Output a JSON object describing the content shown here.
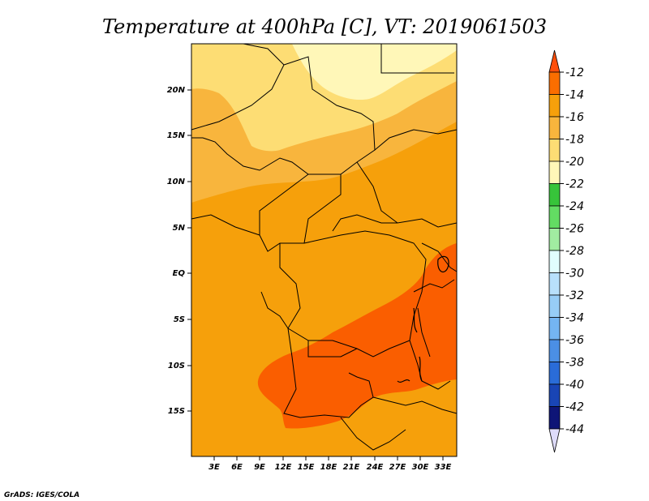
{
  "title": "Temperature at 400hPa [C], VT: 2019061503",
  "footer": "GrADS: IGES/COLA",
  "lat_labels": [
    "20N",
    "15N",
    "10N",
    "5N",
    "EQ",
    "5S",
    "10S",
    "15S"
  ],
  "lon_labels": [
    "3E",
    "6E",
    "9E",
    "12E",
    "15E",
    "18E",
    "21E",
    "24E",
    "27E",
    "30E",
    "33E"
  ],
  "colorbar": {
    "labels": [
      "-12",
      "-14",
      "-16",
      "-18",
      "-20",
      "-22",
      "-24",
      "-26",
      "-28",
      "-30",
      "-32",
      "-34",
      "-36",
      "-38",
      "-40",
      "-42",
      "-44"
    ],
    "colors": [
      "#ff4f0a",
      "#fa6e00",
      "#f6a00b",
      "#f8b53d",
      "#fddd74",
      "#fff7b8",
      "#37c43a",
      "#63dc63",
      "#a1eca1",
      "#e1fdfd",
      "#b8e0fb",
      "#97cdf6",
      "#74b5f2",
      "#4b8fe5",
      "#2a6cd8",
      "#1945b5",
      "#0e1577",
      "#dedbfa"
    ]
  },
  "map_colors": {
    "above_-14": "#fa5e00",
    "-16_to_-14": "#f6a00b",
    "-18_to_-16": "#f8b53d",
    "-20_to_-18": "#fddd74",
    "-22_to_-20": "#fff7b8"
  }
}
